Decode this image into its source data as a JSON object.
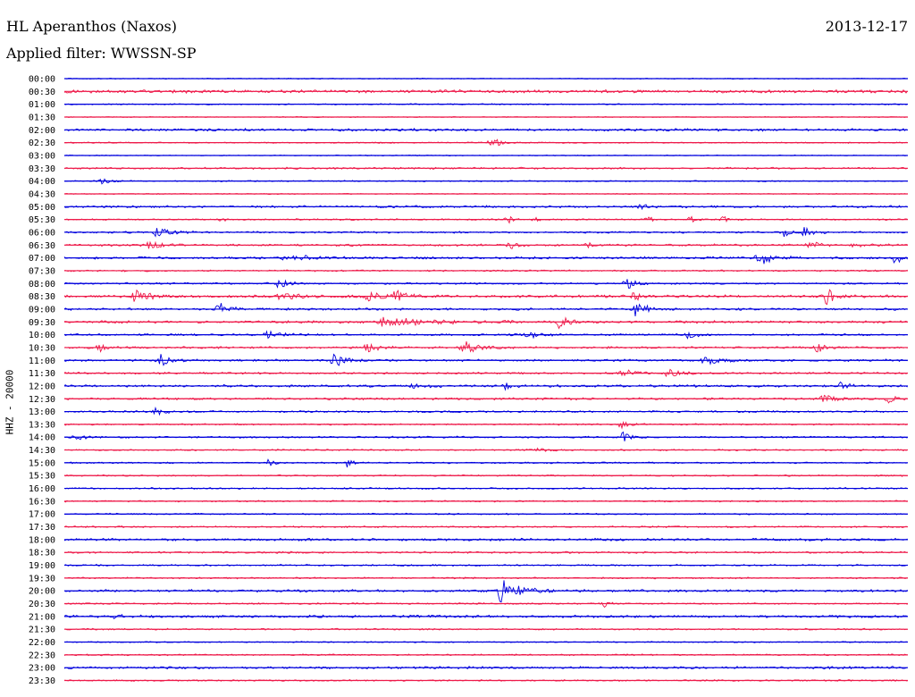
{
  "header": {
    "station": "HL Aperanthos (Naxos)",
    "date": "2013-12-17",
    "filter": "Applied filter: WWSSN-SP"
  },
  "axis": {
    "ylabel": "HHZ - 20000"
  },
  "colors": {
    "trace_a": "#0000dd",
    "trace_b": "#ee1a4a"
  },
  "chart_data": {
    "type": "line",
    "title": "HL Aperanthos (Naxos)",
    "subtitle": "Applied filter: WWSSN-SP",
    "xlabel": "",
    "ylabel": "HHZ - 20000",
    "grid": false,
    "legend": "none",
    "row_labels": [
      "00:00",
      "00:30",
      "01:00",
      "01:30",
      "02:00",
      "02:30",
      "03:00",
      "03:30",
      "04:00",
      "04:30",
      "05:00",
      "05:30",
      "06:00",
      "06:30",
      "07:00",
      "07:30",
      "08:00",
      "08:30",
      "09:00",
      "09:30",
      "10:00",
      "10:30",
      "11:00",
      "11:30",
      "12:00",
      "12:30",
      "13:00",
      "13:30",
      "14:00",
      "14:30",
      "15:00",
      "15:30",
      "16:00",
      "16:30",
      "17:00",
      "17:30",
      "18:00",
      "18:30",
      "19:00",
      "19:30",
      "20:00",
      "20:30",
      "21:00",
      "21:30",
      "22:00",
      "22:30",
      "23:00",
      "23:30"
    ],
    "noise_level": [
      0.6,
      2.0,
      0.8,
      0.6,
      1.6,
      0.8,
      0.6,
      1.2,
      0.8,
      0.6,
      1.4,
      1.0,
      1.2,
      1.4,
      1.6,
      1.0,
      1.2,
      1.8,
      1.4,
      1.6,
      1.2,
      1.4,
      1.4,
      1.2,
      1.6,
      1.4,
      1.2,
      1.0,
      1.2,
      1.0,
      1.0,
      1.0,
      1.0,
      1.0,
      1.0,
      1.0,
      1.6,
      1.2,
      1.0,
      1.0,
      1.6,
      1.0,
      1.6,
      1.0,
      0.8,
      1.0,
      1.6,
      1.0
    ],
    "events": [
      {
        "row": 5,
        "minute": 15.2,
        "amp": 5,
        "dur": 1.3
      },
      {
        "row": 8,
        "minute": 1.3,
        "amp": 3,
        "dur": 1.0
      },
      {
        "row": 10,
        "minute": 20.5,
        "amp": 3,
        "dur": 0.8
      },
      {
        "row": 11,
        "minute": 5.6,
        "amp": 3,
        "dur": 0.5
      },
      {
        "row": 11,
        "minute": 15.8,
        "amp": 5,
        "dur": 0.3
      },
      {
        "row": 11,
        "minute": 16.8,
        "amp": 3,
        "dur": 0.3
      },
      {
        "row": 11,
        "minute": 20.8,
        "amp": 3,
        "dur": 0.4
      },
      {
        "row": 11,
        "minute": 22.3,
        "amp": 3,
        "dur": 0.4
      },
      {
        "row": 11,
        "minute": 23.4,
        "amp": 5,
        "dur": 0.4
      },
      {
        "row": 12,
        "minute": 3.3,
        "amp": 6,
        "dur": 1.2
      },
      {
        "row": 12,
        "minute": 25.6,
        "amp": 5,
        "dur": 0.6
      },
      {
        "row": 12,
        "minute": 26.3,
        "amp": 6,
        "dur": 0.8
      },
      {
        "row": 13,
        "minute": 3.0,
        "amp": 5,
        "dur": 1.2
      },
      {
        "row": 13,
        "minute": 15.9,
        "amp": 6,
        "dur": 0.6
      },
      {
        "row": 13,
        "minute": 18.6,
        "amp": 3,
        "dur": 0.4
      },
      {
        "row": 13,
        "minute": 26.5,
        "amp": 6,
        "dur": 0.8
      },
      {
        "row": 13,
        "minute": 28.1,
        "amp": 5,
        "dur": 0.6
      },
      {
        "row": 14,
        "minute": 7.9,
        "amp": 8,
        "dur": 1.4
      },
      {
        "row": 14,
        "minute": 24.7,
        "amp": 9,
        "dur": 1.2
      },
      {
        "row": 14,
        "minute": 29.6,
        "amp": 8,
        "dur": 0.5
      },
      {
        "row": 16,
        "minute": 7.6,
        "amp": 6,
        "dur": 1.0
      },
      {
        "row": 16,
        "minute": 20.0,
        "amp": 6,
        "dur": 0.8
      },
      {
        "row": 17,
        "minute": 2.5,
        "amp": 7,
        "dur": 1.4
      },
      {
        "row": 17,
        "minute": 7.7,
        "amp": 5,
        "dur": 1.4
      },
      {
        "row": 17,
        "minute": 10.8,
        "amp": 6,
        "dur": 1.0
      },
      {
        "row": 17,
        "minute": 11.8,
        "amp": 7,
        "dur": 1.0
      },
      {
        "row": 17,
        "minute": 20.3,
        "amp": 7,
        "dur": 0.8
      },
      {
        "row": 17,
        "minute": 27.1,
        "amp": 8,
        "dur": 1.0
      },
      {
        "row": 18,
        "minute": 5.5,
        "amp": 8,
        "dur": 1.0
      },
      {
        "row": 18,
        "minute": 20.3,
        "amp": 8,
        "dur": 1.2
      },
      {
        "row": 19,
        "minute": 11.3,
        "amp": 5,
        "dur": 4.5
      },
      {
        "row": 19,
        "minute": 17.6,
        "amp": 7,
        "dur": 1.0
      },
      {
        "row": 20,
        "minute": 7.2,
        "amp": 4,
        "dur": 1.5
      },
      {
        "row": 20,
        "minute": 16.5,
        "amp": 5,
        "dur": 1.0
      },
      {
        "row": 20,
        "minute": 22.1,
        "amp": 5,
        "dur": 1.0
      },
      {
        "row": 21,
        "minute": 1.3,
        "amp": 4,
        "dur": 0.8
      },
      {
        "row": 21,
        "minute": 10.8,
        "amp": 5,
        "dur": 1.0
      },
      {
        "row": 21,
        "minute": 14.2,
        "amp": 8,
        "dur": 1.4
      },
      {
        "row": 21,
        "minute": 26.8,
        "amp": 6,
        "dur": 0.8
      },
      {
        "row": 22,
        "minute": 3.4,
        "amp": 7,
        "dur": 1.0
      },
      {
        "row": 22,
        "minute": 9.6,
        "amp": 8,
        "dur": 1.0
      },
      {
        "row": 22,
        "minute": 22.8,
        "amp": 5,
        "dur": 1.2
      },
      {
        "row": 23,
        "minute": 19.9,
        "amp": 5,
        "dur": 1.0
      },
      {
        "row": 23,
        "minute": 21.5,
        "amp": 5,
        "dur": 1.0
      },
      {
        "row": 24,
        "minute": 12.3,
        "amp": 4,
        "dur": 1.0
      },
      {
        "row": 24,
        "minute": 15.7,
        "amp": 4,
        "dur": 1.0
      },
      {
        "row": 24,
        "minute": 27.6,
        "amp": 4,
        "dur": 0.8
      },
      {
        "row": 25,
        "minute": 27.0,
        "amp": 4,
        "dur": 1.5
      },
      {
        "row": 25,
        "minute": 29.3,
        "amp": 4,
        "dur": 0.8
      },
      {
        "row": 26,
        "minute": 3.3,
        "amp": 5,
        "dur": 0.6
      },
      {
        "row": 27,
        "minute": 19.8,
        "amp": 4,
        "dur": 0.8
      },
      {
        "row": 28,
        "minute": 0.4,
        "amp": 4,
        "dur": 0.8
      },
      {
        "row": 28,
        "minute": 19.9,
        "amp": 6,
        "dur": 0.6
      },
      {
        "row": 29,
        "minute": 16.9,
        "amp": 3,
        "dur": 0.8
      },
      {
        "row": 30,
        "minute": 7.3,
        "amp": 6,
        "dur": 0.4
      },
      {
        "row": 30,
        "minute": 10.1,
        "amp": 6,
        "dur": 0.4
      },
      {
        "row": 40,
        "minute": 15.5,
        "amp": 14,
        "dur": 1.8
      },
      {
        "row": 41,
        "minute": 19.2,
        "amp": 4,
        "dur": 0.6
      },
      {
        "row": 42,
        "minute": 1.8,
        "amp": 3,
        "dur": 0.8
      }
    ]
  }
}
